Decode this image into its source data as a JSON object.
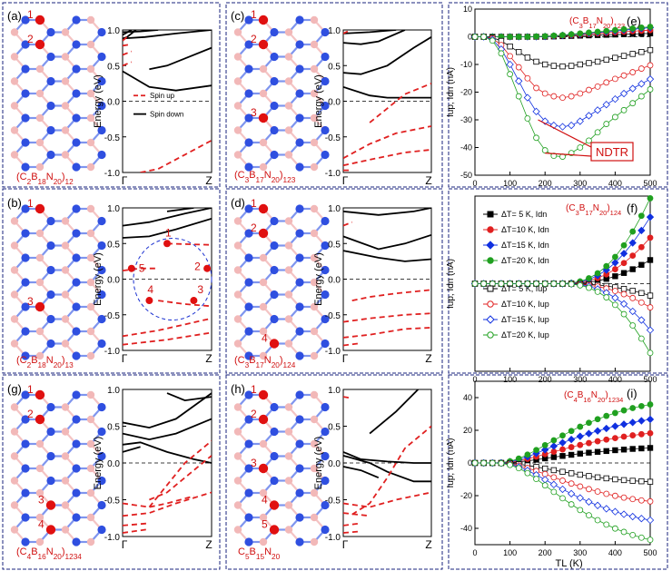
{
  "figure": {
    "colors": {
      "boron": "#f2b8b8",
      "nitrogen": "#2f4fe0",
      "carbon": "#e01010",
      "bond_b": "#f4c4c4",
      "bond_n": "#7f95ee",
      "spin_down": "#000000",
      "spin_up": "#e02020",
      "frame": "#1a237e",
      "label_red": "#d01010"
    },
    "panels": [
      {
        "id": "a",
        "label": "(a)",
        "formula_text": "(C2B18N20)12",
        "carbon_numbers": [
          "1",
          "2"
        ]
      },
      {
        "id": "c",
        "label": "(c)",
        "formula_text": "(C3B17N20)123",
        "carbon_numbers": [
          "1",
          "2",
          "3"
        ]
      },
      {
        "id": "b",
        "label": "(b)",
        "formula_text": "(C2B18N20)13",
        "carbon_numbers": [
          "1",
          "3"
        ]
      },
      {
        "id": "d",
        "label": "(d)",
        "formula_text": "(C3B17N20)124",
        "carbon_numbers": [
          "1",
          "2",
          "4"
        ]
      },
      {
        "id": "g",
        "label": "(g)",
        "formula_text": "(C4B16N20)1234",
        "carbon_numbers": [
          "1",
          "2",
          "3",
          "4"
        ]
      },
      {
        "id": "h",
        "label": "(h)",
        "formula_text": "C5B15N20",
        "carbon_numbers": [
          "1",
          "2",
          "3",
          "4",
          "5"
        ]
      }
    ],
    "band_axes": {
      "ylabel": "Energy (eV)",
      "ylim": [
        -1.0,
        1.0
      ],
      "yticks": [
        "1.0",
        "0.5",
        "0.0",
        "-0.5",
        "-1.0"
      ],
      "xticks": [
        "Γ",
        "Z"
      ]
    },
    "band_legend": {
      "spin_up": "Spin up",
      "spin_down": "Spin down"
    },
    "band_b_markers": [
      "1",
      "2",
      "3",
      "4",
      "5"
    ],
    "current_axes": {
      "ylabel": "Iup, Idn (nA)",
      "xlabel": "TL (K)",
      "xticks": [
        "0",
        "100",
        "200",
        "300",
        "400",
        "500"
      ]
    },
    "panel_e": {
      "label": "(e)",
      "formula": "(C3B17N20)123",
      "annotation": "NDTR",
      "yticks": [
        "10",
        "0",
        "-10",
        "-20",
        "-30",
        "-40",
        "-50"
      ]
    },
    "panel_f": {
      "label": "(f)",
      "formula": "(C3B17N20)124",
      "legend": [
        "ΔT=  5 K, Idn",
        "ΔT=10 K, Idn",
        "ΔT=15 K, Idn",
        "ΔT=20 K, Idn",
        "ΔT=  5 K, Iup",
        "ΔT=10 K, Iup",
        "ΔT=15 K, Iup",
        "ΔT=20 K, Iup"
      ]
    },
    "panel_i": {
      "label": "(i)",
      "formula": "(C4B16N20)1234",
      "yticks": [
        "40",
        "20",
        "0",
        "-20",
        "-40"
      ]
    }
  },
  "chart_data": [
    {
      "type": "line",
      "title": "(e) (C3B17N20)123",
      "xlabel": "TL (K)",
      "ylabel": "Iup, Idn (nA)",
      "xlim": [
        0,
        500
      ],
      "ylim": [
        -50,
        10
      ],
      "x": [
        0,
        25,
        50,
        75,
        100,
        125,
        150,
        175,
        200,
        225,
        250,
        275,
        300,
        325,
        350,
        375,
        400,
        425,
        450,
        475,
        500
      ],
      "series": [
        {
          "name": "ΔT=5 K, Idn",
          "color": "#000000",
          "values": [
            0,
            0,
            0,
            0,
            0,
            0,
            0,
            0,
            0,
            0.1,
            0.2,
            0.3,
            0.4,
            0.5,
            0.6,
            0.7,
            0.8,
            0.9,
            1.0,
            1.1,
            1.2
          ]
        },
        {
          "name": "ΔT=10 K, Idn",
          "color": "#e02020",
          "values": [
            0,
            0,
            0,
            0,
            0,
            0,
            0,
            0,
            0.1,
            0.2,
            0.4,
            0.6,
            0.8,
            1.0,
            1.2,
            1.4,
            1.6,
            1.8,
            2.0,
            2.2,
            2.4
          ]
        },
        {
          "name": "ΔT=15 K, Idn",
          "color": "#1030e0",
          "values": [
            0,
            0,
            0,
            0,
            0,
            0,
            0,
            0,
            0.1,
            0.3,
            0.5,
            0.8,
            1.0,
            1.3,
            1.6,
            1.8,
            2.1,
            2.4,
            2.7,
            3.0,
            3.3
          ]
        },
        {
          "name": "ΔT=20 K, Idn",
          "color": "#20a020",
          "values": [
            0,
            0,
            0,
            0,
            0,
            0,
            0,
            0.1,
            0.2,
            0.4,
            0.6,
            0.9,
            1.2,
            1.5,
            1.8,
            2.1,
            2.4,
            2.7,
            3.0,
            3.3,
            3.6
          ]
        },
        {
          "name": "ΔT=5 K, Iup",
          "color": "#000000",
          "values": [
            0,
            0,
            -0.3,
            -1.5,
            -3.5,
            -5.5,
            -7.5,
            -9.0,
            -10.0,
            -10.5,
            -10.7,
            -10.5,
            -10.0,
            -9.5,
            -9.0,
            -8.3,
            -7.6,
            -6.9,
            -6.2,
            -5.5,
            -4.8
          ]
        },
        {
          "name": "ΔT=10 K, Iup",
          "color": "#e02020",
          "values": [
            0,
            0,
            -0.6,
            -3.0,
            -7.0,
            -11.0,
            -15.0,
            -18.5,
            -20.5,
            -21.5,
            -22.0,
            -21.5,
            -20.5,
            -19.2,
            -18.0,
            -16.5,
            -15.2,
            -14.0,
            -12.8,
            -11.5,
            -10.3
          ]
        },
        {
          "name": "ΔT=15 K, Iup",
          "color": "#1030e0",
          "values": [
            0,
            0,
            -1.0,
            -4.5,
            -10.0,
            -16.0,
            -22.0,
            -27.0,
            -30.5,
            -32.0,
            -32.5,
            -32.0,
            -30.5,
            -28.5,
            -26.5,
            -24.5,
            -22.5,
            -20.5,
            -18.7,
            -17.0,
            -15.3
          ]
        },
        {
          "name": "ΔT=20 K, Iup",
          "color": "#20a020",
          "values": [
            0,
            0,
            -1.4,
            -6.0,
            -13.5,
            -21.5,
            -29.5,
            -36.5,
            -41.0,
            -43.0,
            -43.3,
            -42.0,
            -40.0,
            -37.5,
            -34.5,
            -31.5,
            -29.0,
            -26.5,
            -24.0,
            -21.5,
            -19.0
          ]
        }
      ]
    },
    {
      "type": "line",
      "title": "(f) (C3B17N20)124",
      "xlabel": "TL (K)",
      "ylabel": "Iup, Idn (nA)",
      "xlim": [
        0,
        500
      ],
      "ylim": [
        -10,
        10
      ],
      "x": [
        0,
        25,
        50,
        75,
        100,
        125,
        150,
        175,
        200,
        225,
        250,
        275,
        300,
        325,
        350,
        375,
        400,
        425,
        450,
        475,
        500
      ],
      "series": [
        {
          "name": "ΔT=5 K, Idn",
          "color": "#000000",
          "values": [
            0,
            0,
            0,
            0,
            0,
            0,
            0,
            0,
            0,
            0,
            0,
            0.02,
            0.07,
            0.17,
            0.33,
            0.55,
            0.85,
            1.22,
            1.65,
            2.15,
            2.7
          ]
        },
        {
          "name": "ΔT=10 K, Idn",
          "color": "#e02020",
          "values": [
            0,
            0,
            0,
            0,
            0,
            0,
            0,
            0,
            0,
            0,
            0,
            0.04,
            0.14,
            0.33,
            0.64,
            1.07,
            1.65,
            2.36,
            3.2,
            4.17,
            5.25
          ]
        },
        {
          "name": "ΔT=15 K, Idn",
          "color": "#1030e0",
          "values": [
            0,
            0,
            0,
            0,
            0,
            0,
            0,
            0,
            0,
            0,
            0,
            0.06,
            0.2,
            0.48,
            0.93,
            1.56,
            2.39,
            3.44,
            4.66,
            6.07,
            7.6
          ]
        },
        {
          "name": "ΔT=20 K, Idn",
          "color": "#20a020",
          "values": [
            0,
            0,
            0,
            0,
            0,
            0,
            0,
            0,
            0,
            0,
            0,
            0.08,
            0.26,
            0.62,
            1.19,
            2.0,
            3.06,
            4.38,
            5.95,
            7.75,
            9.75
          ]
        },
        {
          "name": "ΔT=5 K, Iup",
          "color": "#000000",
          "values": [
            0,
            0,
            0,
            0,
            0,
            0,
            0,
            0,
            0,
            0,
            0,
            -0.01,
            -0.03,
            -0.08,
            -0.15,
            -0.26,
            -0.41,
            -0.59,
            -0.81,
            -1.07,
            -1.36
          ]
        },
        {
          "name": "ΔT=10 K, Iup",
          "color": "#e02020",
          "values": [
            0,
            0,
            0,
            0,
            0,
            0,
            0,
            0,
            0,
            0,
            0,
            -0.02,
            -0.07,
            -0.17,
            -0.32,
            -0.54,
            -0.83,
            -1.2,
            -1.64,
            -2.15,
            -2.7
          ]
        },
        {
          "name": "ΔT=15 K, Iup",
          "color": "#1030e0",
          "values": [
            0,
            0,
            0,
            0,
            0,
            0,
            0,
            0,
            0,
            0,
            0,
            -0.03,
            -0.13,
            -0.31,
            -0.61,
            -1.04,
            -1.61,
            -2.31,
            -3.16,
            -4.15,
            -5.3
          ]
        },
        {
          "name": "ΔT=20 K, Iup",
          "color": "#20a020",
          "values": [
            0,
            0,
            0,
            0,
            0,
            0,
            0,
            0,
            0,
            0,
            0,
            -0.05,
            -0.19,
            -0.47,
            -0.92,
            -1.56,
            -2.42,
            -3.48,
            -4.77,
            -6.27,
            -7.9
          ]
        }
      ]
    },
    {
      "type": "line",
      "title": "(i) (C4B16N20)1234",
      "xlabel": "TL (K)",
      "ylabel": "Iup, Idn (nA)",
      "xlim": [
        0,
        500
      ],
      "ylim": [
        -50,
        50
      ],
      "x": [
        0,
        25,
        50,
        75,
        100,
        125,
        150,
        175,
        200,
        225,
        250,
        275,
        300,
        325,
        350,
        375,
        400,
        425,
        450,
        475,
        500
      ],
      "series": [
        {
          "name": "ΔT=5 K, Idn",
          "color": "#000000",
          "values": [
            0,
            0,
            0,
            0.05,
            0.25,
            0.7,
            1.3,
            2.0,
            2.8,
            3.6,
            4.3,
            5.0,
            5.7,
            6.3,
            6.8,
            7.3,
            7.8,
            8.2,
            8.6,
            8.9,
            9.2
          ]
        },
        {
          "name": "ΔT=10 K, Idn",
          "color": "#e02020",
          "values": [
            0,
            0,
            0,
            0.1,
            0.5,
            1.3,
            2.5,
            3.9,
            5.4,
            6.9,
            8.3,
            9.7,
            11.0,
            12.2,
            13.3,
            14.3,
            15.2,
            16.1,
            16.9,
            17.6,
            18.2
          ]
        },
        {
          "name": "ΔT=15 K, Idn",
          "color": "#1030e0",
          "values": [
            0,
            0,
            0,
            0.15,
            0.8,
            2.0,
            3.8,
            5.9,
            8.1,
            10.3,
            12.4,
            14.4,
            16.3,
            18.0,
            19.6,
            21.1,
            22.5,
            23.7,
            24.8,
            25.8,
            26.7
          ]
        },
        {
          "name": "ΔT=20 K, Idn",
          "color": "#20a020",
          "values": [
            0,
            0,
            0,
            0.2,
            1.0,
            2.7,
            5.1,
            7.9,
            10.9,
            13.9,
            16.8,
            19.6,
            22.2,
            24.6,
            26.8,
            28.8,
            30.6,
            32.2,
            33.6,
            34.8,
            35.8
          ]
        },
        {
          "name": "ΔT=5 K, Iup",
          "color": "#000000",
          "values": [
            0,
            0,
            0,
            -0.05,
            -0.3,
            -0.8,
            -1.5,
            -2.4,
            -3.4,
            -4.4,
            -5.4,
            -6.3,
            -7.2,
            -8.0,
            -8.8,
            -9.4,
            -10.0,
            -10.5,
            -10.9,
            -11.2,
            -11.5
          ]
        },
        {
          "name": "ΔT=10 K, Iup",
          "color": "#e02020",
          "values": [
            0,
            0,
            0,
            -0.1,
            -0.6,
            -1.6,
            -3.1,
            -4.9,
            -6.8,
            -8.8,
            -10.8,
            -12.6,
            -14.4,
            -16.0,
            -17.5,
            -18.9,
            -20.1,
            -21.2,
            -22.1,
            -22.9,
            -23.5
          ]
        },
        {
          "name": "ΔT=15 K, Iup",
          "color": "#1030e0",
          "values": [
            0,
            0,
            0,
            -0.15,
            -0.9,
            -2.4,
            -4.6,
            -7.3,
            -10.2,
            -13.2,
            -16.1,
            -18.8,
            -21.4,
            -23.8,
            -26.0,
            -28.0,
            -29.8,
            -31.4,
            -32.8,
            -34.0,
            -35.0
          ]
        },
        {
          "name": "ΔT=20 K, Iup",
          "color": "#20a020",
          "values": [
            0,
            0,
            0,
            -0.2,
            -1.2,
            -3.2,
            -6.2,
            -9.8,
            -13.7,
            -17.7,
            -21.6,
            -25.3,
            -28.8,
            -32.0,
            -35.0,
            -37.7,
            -40.1,
            -42.2,
            -44.1,
            -45.7,
            -47.0
          ]
        }
      ]
    }
  ]
}
